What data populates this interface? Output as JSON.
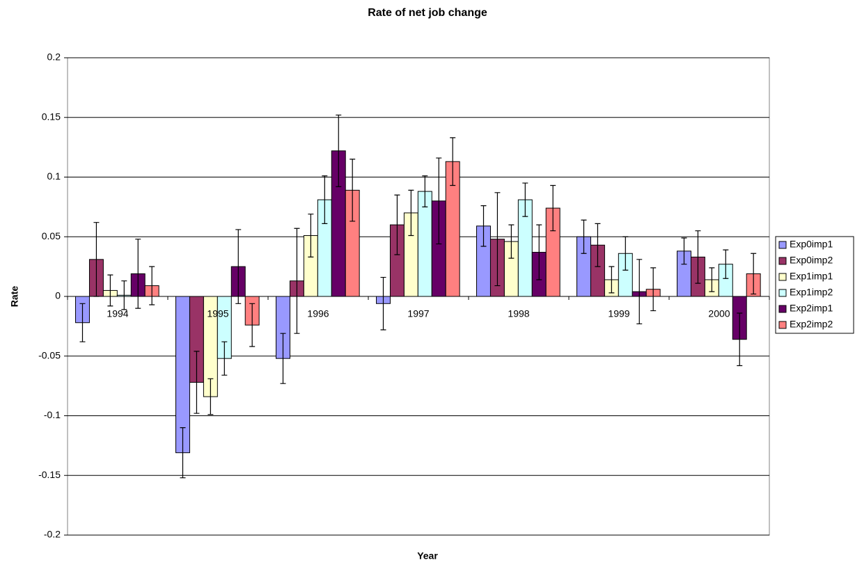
{
  "chart_data": {
    "type": "bar",
    "title": "Rate of net job change",
    "x_label": "Year",
    "y_label": "Rate",
    "categories": [
      "1994",
      "1995",
      "1996",
      "1997",
      "1998",
      "1999",
      "2000"
    ],
    "series": [
      {
        "name": "Exp0imp1",
        "color": "#9999ff",
        "values": [
          -0.022,
          -0.131,
          -0.052,
          -0.006,
          0.059,
          0.05,
          0.038
        ],
        "errors": [
          0.016,
          0.021,
          0.021,
          0.022,
          0.017,
          0.014,
          0.011
        ]
      },
      {
        "name": "Exp0imp2",
        "color": "#993366",
        "values": [
          0.031,
          -0.072,
          0.013,
          0.06,
          0.048,
          0.043,
          0.033
        ],
        "errors": [
          0.031,
          0.026,
          0.044,
          0.025,
          0.039,
          0.018,
          0.022
        ]
      },
      {
        "name": "Exp1imp1",
        "color": "#ffffcc",
        "values": [
          0.005,
          -0.084,
          0.051,
          0.07,
          0.046,
          0.014,
          0.014
        ],
        "errors": [
          0.013,
          0.015,
          0.018,
          0.019,
          0.014,
          0.011,
          0.01
        ]
      },
      {
        "name": "Exp1imp2",
        "color": "#ccffff",
        "values": [
          0.001,
          -0.052,
          0.081,
          0.088,
          0.081,
          0.036,
          0.027
        ],
        "errors": [
          0.012,
          0.014,
          0.02,
          0.013,
          0.014,
          0.014,
          0.012
        ]
      },
      {
        "name": "Exp2imp1",
        "color": "#660066",
        "values": [
          0.019,
          0.025,
          0.122,
          0.08,
          0.037,
          0.004,
          -0.036
        ],
        "errors": [
          0.029,
          0.031,
          0.03,
          0.036,
          0.023,
          0.027,
          0.022
        ]
      },
      {
        "name": "Exp2imp2",
        "color": "#ff8080",
        "values": [
          0.009,
          -0.024,
          0.089,
          0.113,
          0.074,
          0.006,
          0.019
        ],
        "errors": [
          0.016,
          0.018,
          0.026,
          0.02,
          0.019,
          0.018,
          0.017
        ]
      }
    ],
    "ylim": [
      -0.2,
      0.2
    ],
    "yticks": [
      -0.2,
      -0.15,
      -0.1,
      -0.05,
      0,
      0.05,
      0.1,
      0.15,
      0.2
    ],
    "grid": true,
    "legend": "right"
  }
}
